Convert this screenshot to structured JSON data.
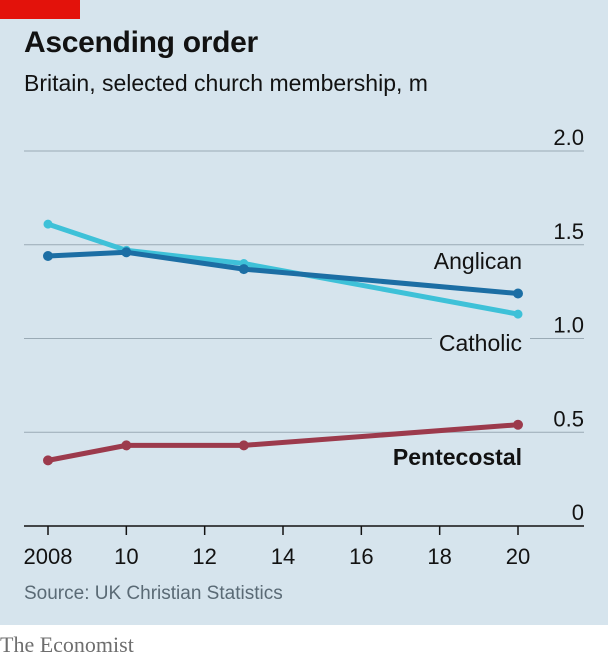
{
  "header": {
    "title": "Ascending order",
    "subtitle": "Britain, selected church membership, m"
  },
  "footer": {
    "source": "Source: UK Christian Statistics",
    "brand": "The Economist"
  },
  "colors": {
    "background": "#d6e4ed",
    "accent_red": "#e3120b",
    "anglican": "#1c6ea4",
    "catholic": "#3ec1d8",
    "pentecostal": "#9c3a4c",
    "grid": "#9aaab5",
    "axis": "#121212"
  },
  "chart_data": {
    "type": "line",
    "title": "Ascending order",
    "subtitle": "Britain, selected church membership, m",
    "xlabel": "",
    "ylabel": "",
    "xlim": [
      2008,
      2020
    ],
    "ylim": [
      0,
      2.0
    ],
    "x_ticks": [
      2008,
      2010,
      2012,
      2014,
      2016,
      2018,
      2020
    ],
    "x_tick_labels": [
      "2008",
      "10",
      "12",
      "14",
      "16",
      "18",
      "20"
    ],
    "y_ticks": [
      0,
      0.5,
      1.0,
      1.5,
      2.0
    ],
    "y_tick_labels": [
      "0",
      "0.5",
      "1.0",
      "1.5",
      "2.0"
    ],
    "grid": "horizontal",
    "legend": "direct labels",
    "series": [
      {
        "name": "Catholic",
        "color": "#3ec1d8",
        "markers": false,
        "x": [
          2008,
          2010,
          2013,
          2020
        ],
        "y": [
          1.61,
          1.47,
          1.4,
          1.13
        ]
      },
      {
        "name": "Anglican",
        "color": "#1c6ea4",
        "markers": true,
        "x": [
          2008,
          2010,
          2013,
          2020
        ],
        "y": [
          1.44,
          1.46,
          1.37,
          1.24
        ]
      },
      {
        "name": "Pentecostal",
        "color": "#9c3a4c",
        "markers": true,
        "bold_label": true,
        "x": [
          2008,
          2010,
          2013,
          2020
        ],
        "y": [
          0.35,
          0.43,
          0.43,
          0.54
        ]
      }
    ]
  }
}
